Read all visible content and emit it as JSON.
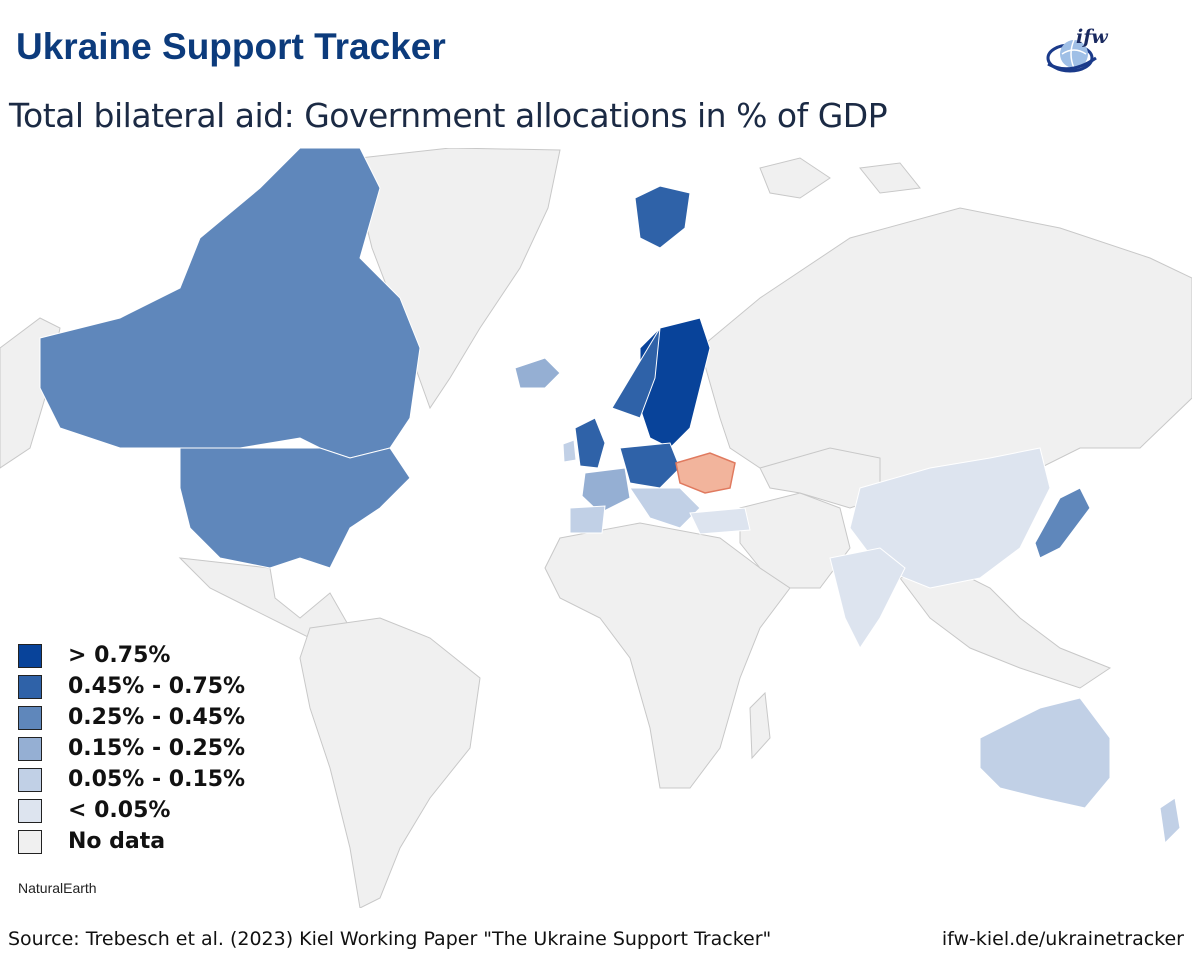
{
  "header": {
    "title": "Ukraine Support Tracker",
    "subtitle": "Total bilateral aid: Government allocations in % of GDP",
    "logo_text": "ifw"
  },
  "legend": {
    "items": [
      {
        "label": "> 0.75%",
        "color": "#08439a"
      },
      {
        "label": "0.45% - 0.75%",
        "color": "#2f62a8"
      },
      {
        "label": "0.25% - 0.45%",
        "color": "#5f87bb"
      },
      {
        "label": "0.15% - 0.25%",
        "color": "#95afd3"
      },
      {
        "label": "0.05% - 0.15%",
        "color": "#c1d0e6"
      },
      {
        "label": "< 0.05%",
        "color": "#dde4ef"
      },
      {
        "label": "No data",
        "color": "#f0f0f0"
      }
    ]
  },
  "map": {
    "highlight_country": "Ukraine",
    "highlight_color": "#f2b49c",
    "ocean_color": "#ffffff",
    "border_color": "#c8c8c8"
  },
  "credit": "NaturalEarth",
  "footer": {
    "source": "Source: Trebesch et al. (2023) Kiel Working Paper \"The Ukraine Support Tracker\"",
    "website": "ifw-kiel.de/ukrainetracker"
  }
}
